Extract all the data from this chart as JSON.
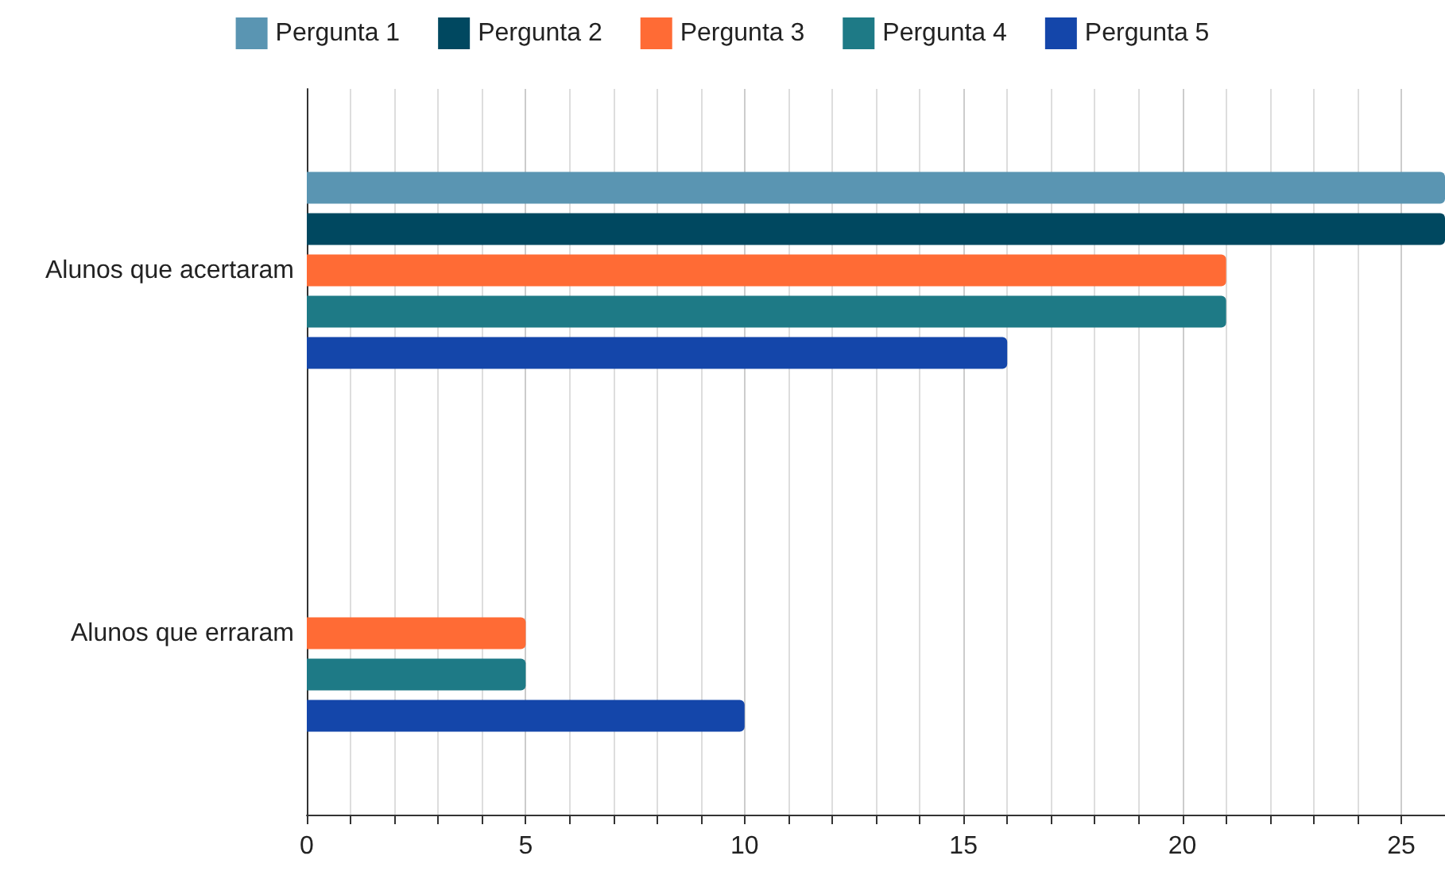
{
  "chart_data": {
    "type": "bar",
    "orientation": "horizontal",
    "categories": [
      "Alunos que acertaram",
      "Alunos que erraram"
    ],
    "series": [
      {
        "name": "Pergunta 1",
        "color": "#5a95b2",
        "values": [
          26,
          0
        ]
      },
      {
        "name": "Pergunta 2",
        "color": "#004860",
        "values": [
          26,
          0
        ]
      },
      {
        "name": "Pergunta 3",
        "color": "#ff6b35",
        "values": [
          21,
          5
        ]
      },
      {
        "name": "Pergunta 4",
        "color": "#1e7a86",
        "values": [
          21,
          5
        ]
      },
      {
        "name": "Pergunta 5",
        "color": "#1446aa",
        "values": [
          16,
          10
        ]
      }
    ],
    "xlim": [
      0,
      26
    ],
    "xticks": [
      0,
      5,
      10,
      15,
      20,
      25
    ],
    "grid": "x",
    "legend": "top"
  }
}
